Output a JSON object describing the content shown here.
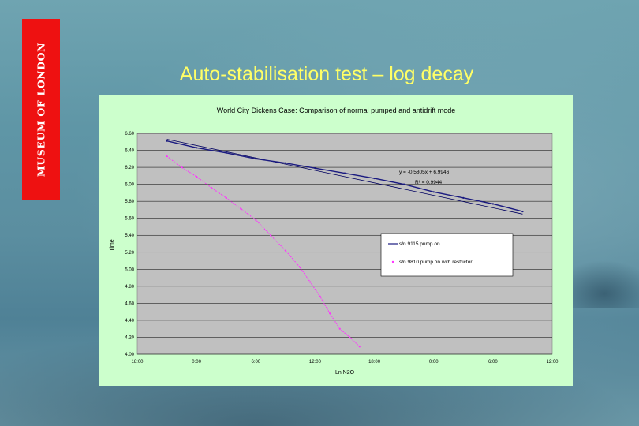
{
  "slide": {
    "title": "Auto-stabilisation test – log decay",
    "logo_text": "MUSEUM OF LONDON",
    "colors": {
      "logo_bg": "#ee1111",
      "title": "#ffff66",
      "panel": "#ccffcc",
      "plot": "#c0c0c0"
    }
  },
  "chart_data": {
    "type": "scatter",
    "title": "World City Dickens Case: Comparison of normal pumped and antidrift mode",
    "xlabel": "Ln N2O",
    "ylabel": "Time",
    "x_ticks": [
      "18:00",
      "0:00",
      "6:00",
      "12:00",
      "18:00",
      "0:00",
      "6:00",
      "12:00"
    ],
    "x_range_hours": [
      0,
      42
    ],
    "ylim": [
      4.0,
      6.6
    ],
    "y_step": 0.2,
    "grid": true,
    "legend_position": "center-right",
    "series": [
      {
        "name": "s/n 9115 pump on",
        "color": "#1a1a80",
        "x": [
          3,
          6,
          9,
          12,
          15,
          18,
          21,
          24,
          27,
          30,
          33,
          36,
          39
        ],
        "y": [
          6.51,
          6.43,
          6.37,
          6.3,
          6.25,
          6.19,
          6.13,
          6.07,
          6.0,
          5.91,
          5.84,
          5.77,
          5.68
        ]
      },
      {
        "name": "s/n 9810 pump on with restrictor",
        "color": "#ff33ff",
        "x": [
          3,
          4.5,
          6,
          7.5,
          9,
          10.5,
          12,
          13.5,
          15,
          16.5,
          17.5,
          18.5,
          19.5,
          20.5,
          21.5,
          22.5
        ],
        "y": [
          6.33,
          6.2,
          6.09,
          5.96,
          5.84,
          5.71,
          5.58,
          5.4,
          5.22,
          5.02,
          4.85,
          4.68,
          4.48,
          4.3,
          4.2,
          4.09
        ]
      }
    ],
    "trendline": {
      "equation": "y = -0.5805x + 6.9946",
      "r_squared": "R² = 0.9944",
      "x": [
        3,
        39
      ],
      "y": [
        6.53,
        5.65
      ]
    }
  }
}
